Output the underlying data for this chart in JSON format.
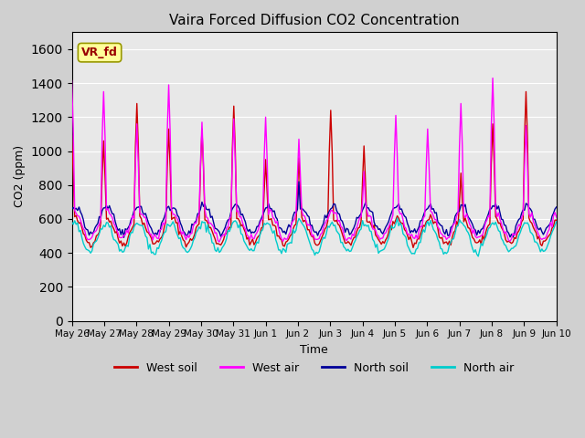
{
  "title": "Vaira Forced Diffusion CO2 Concentration",
  "xlabel": "Time",
  "ylabel": "CO2 (ppm)",
  "ylim": [
    0,
    1700
  ],
  "yticks": [
    0,
    200,
    400,
    600,
    800,
    1000,
    1200,
    1400,
    1600
  ],
  "legend_labels": [
    "West soil",
    "West air",
    "North soil",
    "North air"
  ],
  "legend_colors": [
    "#cc0000",
    "#ff00ff",
    "#000099",
    "#00cccc"
  ],
  "label_box_text": "VR_fd",
  "label_box_color": "#ffff99",
  "label_box_text_color": "#990000",
  "bg_color": "#e8e8e8",
  "tick_labels": [
    "May 26",
    "May 27",
    "May 28",
    "May 29",
    "May 30",
    "May 31",
    "Jun 1",
    "Jun 2",
    "Jun 3",
    "Jun 4",
    "Jun 5",
    "Jun 6",
    "Jun 7",
    "Jun 8",
    "Jun 9",
    "Jun 10"
  ],
  "n_points": 336,
  "spike_days": [
    0,
    1,
    2,
    3,
    4,
    5,
    6,
    7,
    8,
    9,
    10,
    11,
    12,
    13,
    14
  ],
  "spike_heights_west_air": [
    1415,
    1350,
    1160,
    1390,
    1170,
    1190,
    1200,
    1070,
    620,
    880,
    1210,
    1130,
    1280,
    1430,
    1150
  ],
  "spike_heights_west_soil": [
    1090,
    1060,
    1280,
    1130,
    1130,
    1265,
    950,
    960,
    1240,
    1030,
    580,
    590,
    870,
    1160,
    1350
  ],
  "spike_heights_north_soil": [
    0,
    0,
    0,
    0,
    0,
    0,
    0,
    820,
    640,
    0,
    0,
    0,
    0,
    660,
    0
  ],
  "spike_heights_north_air": [
    0,
    0,
    0,
    0,
    0,
    0,
    0,
    0,
    0,
    0,
    0,
    0,
    0,
    0,
    0
  ]
}
